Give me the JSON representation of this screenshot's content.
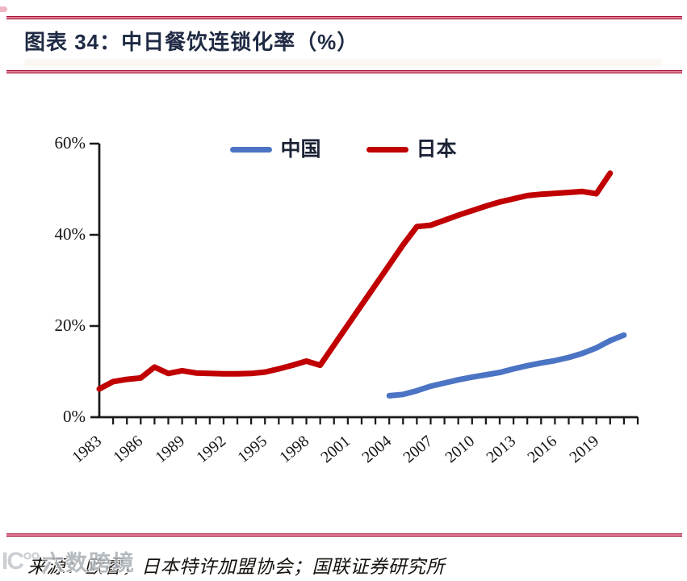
{
  "header": {
    "title": "图表 34：中日餐饮连锁化率（%）"
  },
  "chart_data": {
    "type": "line",
    "title": "中日餐饮连锁化率（%）",
    "xlabel": "",
    "ylabel": "",
    "x_domain": [
      1983,
      2022
    ],
    "ylim": [
      0,
      60
    ],
    "grid": false,
    "legend_position": "top-center",
    "yticks": [
      {
        "v": 0,
        "label": "0%"
      },
      {
        "v": 20,
        "label": "20%"
      },
      {
        "v": 40,
        "label": "40%"
      },
      {
        "v": 60,
        "label": "60%"
      }
    ],
    "xticks_labeled": [
      1983,
      1986,
      1989,
      1992,
      1995,
      1998,
      2001,
      2004,
      2007,
      2010,
      2013,
      2016,
      2019
    ],
    "series": [
      {
        "id": "china",
        "name": "中国",
        "color": "#4C74C4",
        "points": [
          [
            2004,
            4.7
          ],
          [
            2005,
            5.0
          ],
          [
            2006,
            5.8
          ],
          [
            2007,
            6.8
          ],
          [
            2008,
            7.5
          ],
          [
            2009,
            8.2
          ],
          [
            2010,
            8.8
          ],
          [
            2011,
            9.3
          ],
          [
            2012,
            9.8
          ],
          [
            2013,
            10.6
          ],
          [
            2014,
            11.3
          ],
          [
            2015,
            11.9
          ],
          [
            2016,
            12.4
          ],
          [
            2017,
            13.1
          ],
          [
            2018,
            14.0
          ],
          [
            2019,
            15.2
          ],
          [
            2020,
            16.8
          ],
          [
            2021,
            18.0
          ]
        ]
      },
      {
        "id": "japan",
        "name": "日本",
        "color": "#C00000",
        "points": [
          [
            1983,
            6.2
          ],
          [
            1984,
            7.8
          ],
          [
            1985,
            8.3
          ],
          [
            1986,
            8.6
          ],
          [
            1987,
            11.0
          ],
          [
            1988,
            9.6
          ],
          [
            1989,
            10.2
          ],
          [
            1990,
            9.7
          ],
          [
            1991,
            9.6
          ],
          [
            1992,
            9.5
          ],
          [
            1993,
            9.5
          ],
          [
            1994,
            9.6
          ],
          [
            1995,
            9.9
          ],
          [
            1996,
            10.6
          ],
          [
            1997,
            11.4
          ],
          [
            1998,
            12.3
          ],
          [
            1999,
            11.4
          ],
          [
            2000,
            15.8
          ],
          [
            2001,
            20.2
          ],
          [
            2002,
            24.6
          ],
          [
            2003,
            29.0
          ],
          [
            2004,
            33.4
          ],
          [
            2005,
            37.8
          ],
          [
            2006,
            41.8
          ],
          [
            2007,
            42.1
          ],
          [
            2008,
            43.2
          ],
          [
            2009,
            44.3
          ],
          [
            2010,
            45.3
          ],
          [
            2011,
            46.3
          ],
          [
            2012,
            47.2
          ],
          [
            2013,
            47.9
          ],
          [
            2014,
            48.6
          ],
          [
            2015,
            48.9
          ],
          [
            2016,
            49.1
          ],
          [
            2017,
            49.3
          ],
          [
            2018,
            49.5
          ],
          [
            2019,
            49.0
          ],
          [
            2020,
            53.5
          ]
        ]
      }
    ]
  },
  "footer": {
    "source": "来源：欧睿，日本特许加盟协会；国联证券研究所",
    "watermark_logo": "IC°°",
    "watermark_text": "六数跨境"
  },
  "style": {
    "axis_color": "#1a1a1a",
    "rule_red": "#9e1234"
  }
}
